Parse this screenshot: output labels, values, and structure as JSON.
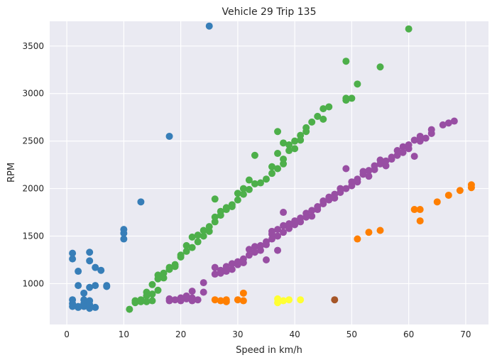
{
  "chart_data": {
    "type": "scatter",
    "title": "Vehicle 29 Trip 135",
    "xlabel": "Speed in km/h",
    "ylabel": "RPM",
    "xlim": [
      -3,
      74
    ],
    "ylim": [
      570,
      3760
    ],
    "xticks": [
      0,
      10,
      20,
      30,
      40,
      50,
      60,
      70
    ],
    "yticks": [
      1000,
      1500,
      2000,
      2500,
      3000,
      3500
    ],
    "grid": true,
    "background": "#EAEAF2",
    "series": [
      {
        "color": "#377EB8",
        "points": [
          [
            1,
            760
          ],
          [
            1,
            790
          ],
          [
            1,
            830
          ],
          [
            1,
            1260
          ],
          [
            1,
            1320
          ],
          [
            2,
            750
          ],
          [
            2,
            760
          ],
          [
            2,
            980
          ],
          [
            2,
            1130
          ],
          [
            3,
            760
          ],
          [
            3,
            790
          ],
          [
            3,
            830
          ],
          [
            3,
            900
          ],
          [
            4,
            740
          ],
          [
            4,
            780
          ],
          [
            4,
            820
          ],
          [
            4,
            960
          ],
          [
            4,
            1240
          ],
          [
            4,
            1330
          ],
          [
            5,
            750
          ],
          [
            5,
            980
          ],
          [
            5,
            1170
          ],
          [
            6,
            1140
          ],
          [
            7,
            970
          ],
          [
            7,
            980
          ],
          [
            10,
            1470
          ],
          [
            10,
            1530
          ],
          [
            10,
            1570
          ],
          [
            13,
            1860
          ],
          [
            18,
            2550
          ],
          [
            25,
            3710
          ]
        ]
      },
      {
        "color": "#4DAF4A",
        "points": [
          [
            11,
            730
          ],
          [
            12,
            800
          ],
          [
            12,
            820
          ],
          [
            13,
            810
          ],
          [
            13,
            830
          ],
          [
            14,
            810
          ],
          [
            14,
            870
          ],
          [
            14,
            910
          ],
          [
            15,
            820
          ],
          [
            15,
            890
          ],
          [
            15,
            990
          ],
          [
            16,
            930
          ],
          [
            16,
            1050
          ],
          [
            16,
            1090
          ],
          [
            17,
            1060
          ],
          [
            17,
            1110
          ],
          [
            18,
            1150
          ],
          [
            18,
            1170
          ],
          [
            19,
            1180
          ],
          [
            19,
            1200
          ],
          [
            20,
            1280
          ],
          [
            20,
            1300
          ],
          [
            21,
            1340
          ],
          [
            21,
            1400
          ],
          [
            22,
            1380
          ],
          [
            22,
            1490
          ],
          [
            23,
            1440
          ],
          [
            23,
            1510
          ],
          [
            24,
            1500
          ],
          [
            24,
            1560
          ],
          [
            25,
            1550
          ],
          [
            25,
            1600
          ],
          [
            26,
            1650
          ],
          [
            26,
            1700
          ],
          [
            26,
            1890
          ],
          [
            27,
            1720
          ],
          [
            27,
            1760
          ],
          [
            28,
            1780
          ],
          [
            28,
            1800
          ],
          [
            29,
            1810
          ],
          [
            29,
            1830
          ],
          [
            30,
            1880
          ],
          [
            30,
            1950
          ],
          [
            31,
            1940
          ],
          [
            31,
            2000
          ],
          [
            32,
            2090
          ],
          [
            32,
            1990
          ],
          [
            33,
            2050
          ],
          [
            33,
            2350
          ],
          [
            34,
            2060
          ],
          [
            35,
            2100
          ],
          [
            36,
            2160
          ],
          [
            36,
            2230
          ],
          [
            37,
            2210
          ],
          [
            37,
            2370
          ],
          [
            37,
            2600
          ],
          [
            38,
            2260
          ],
          [
            38,
            2310
          ],
          [
            38,
            2480
          ],
          [
            39,
            2400
          ],
          [
            39,
            2460
          ],
          [
            40,
            2500
          ],
          [
            40,
            2420
          ],
          [
            41,
            2510
          ],
          [
            41,
            2560
          ],
          [
            42,
            2600
          ],
          [
            42,
            2640
          ],
          [
            43,
            2700
          ],
          [
            44,
            2760
          ],
          [
            45,
            2730
          ],
          [
            45,
            2840
          ],
          [
            46,
            2860
          ],
          [
            49,
            2930
          ],
          [
            49,
            2950
          ],
          [
            49,
            3340
          ],
          [
            50,
            2950
          ],
          [
            51,
            3100
          ],
          [
            55,
            3280
          ],
          [
            60,
            3680
          ]
        ]
      },
      {
        "color": "#984EA3",
        "points": [
          [
            18,
            820
          ],
          [
            18,
            840
          ],
          [
            19,
            830
          ],
          [
            20,
            820
          ],
          [
            20,
            850
          ],
          [
            21,
            840
          ],
          [
            21,
            870
          ],
          [
            22,
            820
          ],
          [
            22,
            850
          ],
          [
            22,
            920
          ],
          [
            23,
            830
          ],
          [
            24,
            910
          ],
          [
            24,
            1010
          ],
          [
            26,
            1100
          ],
          [
            26,
            1170
          ],
          [
            27,
            1110
          ],
          [
            27,
            1140
          ],
          [
            28,
            1130
          ],
          [
            28,
            1180
          ],
          [
            29,
            1150
          ],
          [
            29,
            1210
          ],
          [
            30,
            1200
          ],
          [
            30,
            1230
          ],
          [
            31,
            1220
          ],
          [
            31,
            1260
          ],
          [
            32,
            1300
          ],
          [
            32,
            1360
          ],
          [
            33,
            1330
          ],
          [
            33,
            1390
          ],
          [
            34,
            1350
          ],
          [
            34,
            1400
          ],
          [
            35,
            1410
          ],
          [
            35,
            1440
          ],
          [
            35,
            1250
          ],
          [
            36,
            1470
          ],
          [
            36,
            1520
          ],
          [
            36,
            1550
          ],
          [
            37,
            1500
          ],
          [
            37,
            1570
          ],
          [
            37,
            1350
          ],
          [
            38,
            1540
          ],
          [
            38,
            1610
          ],
          [
            38,
            1750
          ],
          [
            39,
            1580
          ],
          [
            39,
            1630
          ],
          [
            40,
            1620
          ],
          [
            40,
            1660
          ],
          [
            41,
            1650
          ],
          [
            41,
            1690
          ],
          [
            42,
            1700
          ],
          [
            42,
            1740
          ],
          [
            43,
            1710
          ],
          [
            43,
            1770
          ],
          [
            44,
            1780
          ],
          [
            44,
            1810
          ],
          [
            45,
            1840
          ],
          [
            45,
            1870
          ],
          [
            46,
            1880
          ],
          [
            46,
            1910
          ],
          [
            47,
            1900
          ],
          [
            47,
            1940
          ],
          [
            48,
            1960
          ],
          [
            48,
            2000
          ],
          [
            49,
            2000
          ],
          [
            49,
            2210
          ],
          [
            50,
            2030
          ],
          [
            50,
            2070
          ],
          [
            51,
            2100
          ],
          [
            51,
            2070
          ],
          [
            52,
            2150
          ],
          [
            52,
            2180
          ],
          [
            53,
            2130
          ],
          [
            53,
            2190
          ],
          [
            54,
            2200
          ],
          [
            54,
            2240
          ],
          [
            55,
            2260
          ],
          [
            55,
            2300
          ],
          [
            56,
            2240
          ],
          [
            56,
            2290
          ],
          [
            57,
            2310
          ],
          [
            57,
            2330
          ],
          [
            58,
            2350
          ],
          [
            58,
            2400
          ],
          [
            59,
            2380
          ],
          [
            59,
            2440
          ],
          [
            60,
            2460
          ],
          [
            60,
            2420
          ],
          [
            61,
            2510
          ],
          [
            61,
            2340
          ],
          [
            62,
            2500
          ],
          [
            62,
            2550
          ],
          [
            63,
            2530
          ],
          [
            64,
            2580
          ],
          [
            64,
            2620
          ],
          [
            66,
            2670
          ],
          [
            67,
            2690
          ],
          [
            68,
            2710
          ]
        ]
      },
      {
        "color": "#FF7F00",
        "points": [
          [
            26,
            830
          ],
          [
            27,
            820
          ],
          [
            28,
            830
          ],
          [
            28,
            810
          ],
          [
            30,
            830
          ],
          [
            31,
            820
          ],
          [
            31,
            900
          ],
          [
            51,
            1470
          ],
          [
            53,
            1540
          ],
          [
            55,
            1560
          ],
          [
            61,
            1780
          ],
          [
            62,
            1780
          ],
          [
            62,
            1660
          ],
          [
            65,
            1860
          ],
          [
            67,
            1930
          ],
          [
            69,
            1980
          ],
          [
            71,
            2010
          ],
          [
            71,
            2040
          ]
        ]
      },
      {
        "color": "#FFFF33",
        "points": [
          [
            37,
            800
          ],
          [
            37,
            840
          ],
          [
            38,
            820
          ],
          [
            39,
            830
          ],
          [
            41,
            830
          ]
        ]
      },
      {
        "color": "#A65628",
        "points": [
          [
            47,
            830
          ]
        ]
      }
    ]
  }
}
